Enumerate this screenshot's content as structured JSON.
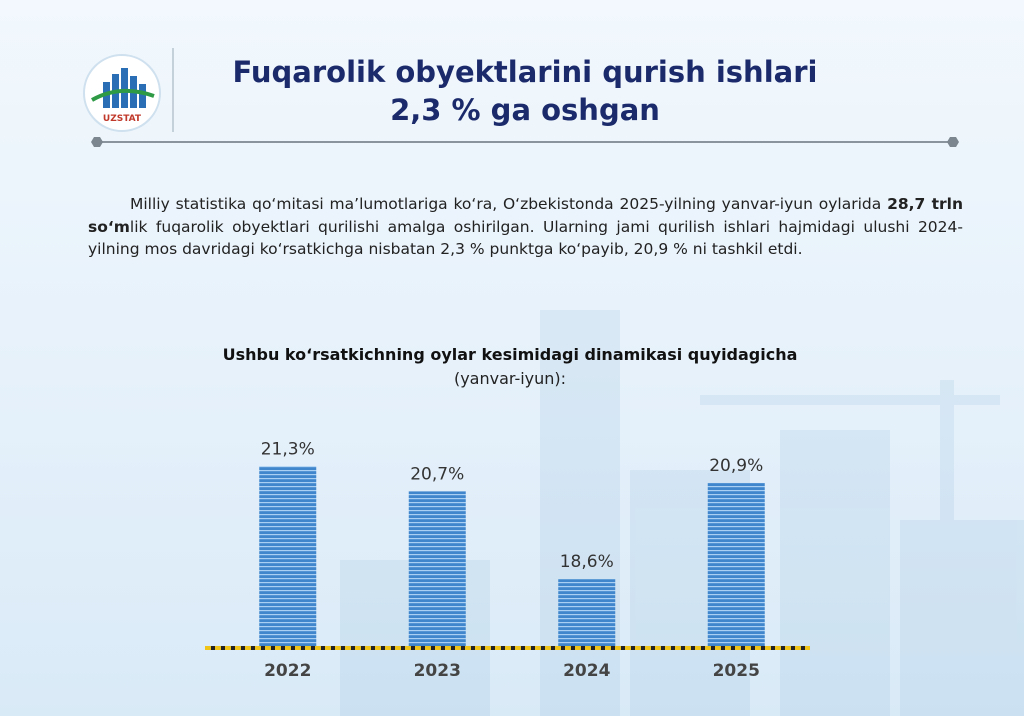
{
  "header": {
    "title": [
      "Fuqarolik obyektlarini qurish ishlari",
      "2,3 % ga oshgan"
    ],
    "logo": "UZSTAT"
  },
  "paragraph": [
    "Milliy statistika qo‘mitasi ma’lumotlariga ko‘ra, O‘zbekistonda 2025-yilning yanvar-iyun oylarida ",
    "28,7 trln so‘m",
    "lik fuqarolik obyektlari qurilishi amalga oshirilgan. Ularning jami qurilish ishlari hajmidagi ulushi 2024-yilning mos davridagi ko‘rsatkichga nisbatan 2,3 % punktga ko‘payib, 20,9 % ni tashkil etdi."
  ],
  "chart_data": {
    "type": "bar",
    "title": "Ushbu ko‘rsatkichning oylar kesimidagi dinamikasi quyidagicha",
    "subtitle": "(yanvar-iyun):",
    "categories": [
      "2022",
      "2023",
      "2024",
      "2025"
    ],
    "values": [
      21.3,
      20.7,
      18.6,
      20.9
    ],
    "value_labels": [
      "21,3%",
      "20,7%",
      "18,6%",
      "20,9%"
    ],
    "color": "#4d8fd0",
    "ylim": [
      17,
      22
    ]
  }
}
